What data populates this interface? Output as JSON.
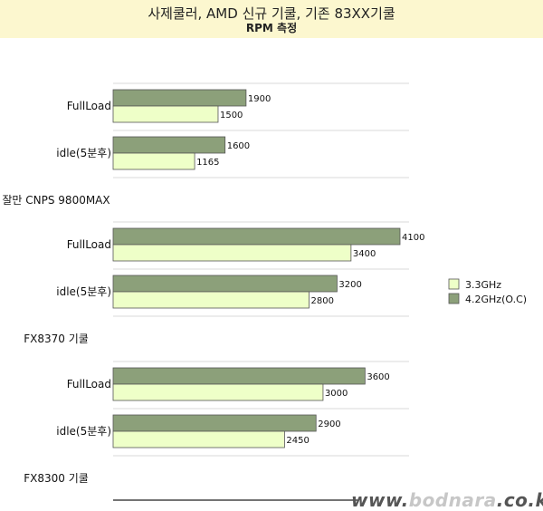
{
  "title": {
    "line1": "사제쿨러, AMD 신규 기쿨, 기존 83XX기쿨",
    "line2": "RPM 측정"
  },
  "watermark": {
    "prefix": "www.",
    "brand": "bodnara",
    "suffix": ".co.kr"
  },
  "colors": {
    "series_3_3": "#eeffc8",
    "series_4_2": "#8ca07a",
    "edge": "#555555",
    "title_band": "#fcf7cf"
  },
  "chart_data": {
    "type": "bar",
    "orientation": "horizontal",
    "groups": [
      {
        "label": "잘만 CNPS 9800MAX",
        "categories": [
          "FullLoad",
          "idle(5분후)"
        ],
        "series": [
          {
            "name": "4.2GHz(O.C)",
            "values": [
              1900,
              1600
            ]
          },
          {
            "name": "3.3GHz",
            "values": [
              1500,
              1165
            ]
          }
        ]
      },
      {
        "label": "FX8370 기쿨",
        "categories": [
          "FullLoad",
          "idle(5분후)"
        ],
        "series": [
          {
            "name": "4.2GHz(O.C)",
            "values": [
              4100,
              3200
            ]
          },
          {
            "name": "3.3GHz",
            "values": [
              3400,
              2800
            ]
          }
        ]
      },
      {
        "label": "FX8300 기쿨",
        "categories": [
          "FullLoad",
          "idle(5분후)"
        ],
        "series": [
          {
            "name": "4.2GHz(O.C)",
            "values": [
              3600,
              2900
            ]
          },
          {
            "name": "3.3GHz",
            "values": [
              3000,
              2450
            ]
          }
        ]
      }
    ],
    "xlim": [
      0,
      4400
    ],
    "legend": {
      "position": "right",
      "entries": [
        "3.3GHz",
        "4.2GHz(O.C)"
      ]
    },
    "grid": true
  }
}
